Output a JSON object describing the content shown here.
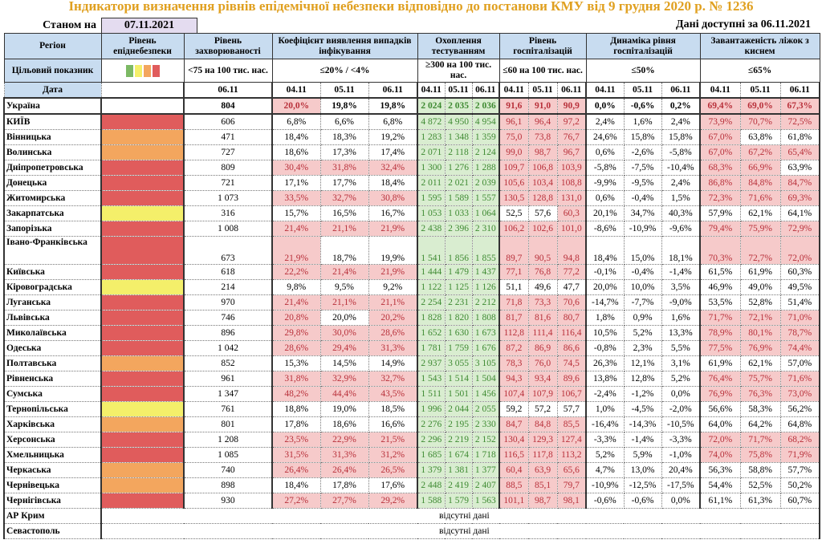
{
  "title": "Індикатори визначення рівнів епідемічної небезпеки відповідно до постанови КМУ від 9 грудня 2020 р. № 1236",
  "as_of_label": "Станом на",
  "as_of_date": "07.11.2021",
  "available_label": "Дані доступні за 06.11.2021",
  "headers": {
    "region": "Регіон",
    "level": "Рівень епіднебезпеки",
    "incidence": "Рівень захворюваності",
    "coef": "Коефіцієнт виявлення випадків інфікування",
    "testing": "Охоплення тестуванням",
    "hosp": "Рівень госпіталізацій",
    "dyn": "Динаміка рівня госпіталізацій",
    "oxy": "Завантаженість ліжок з киснем"
  },
  "target": {
    "label": "Цільовий показник",
    "incidence": "<75 на 100 тис. нас.",
    "coef": "≤20% / <4%",
    "testing": "≥300 на 100 тис. нас.",
    "hosp": "≤60 на 100 тис. нас.",
    "dyn": "≤50%",
    "oxy": "≤65%"
  },
  "date_row": {
    "label": "Дата",
    "incidence": "06.11",
    "dates": [
      "04.11",
      "05.11",
      "06.11"
    ]
  },
  "level_colors": {
    "green": "#7cb964",
    "yellow": "#f4ef6a",
    "orange": "#f3a65e",
    "red": "#e05c5c"
  },
  "rows": [
    {
      "r": "Україна",
      "lvl": "",
      "inc": "804",
      "coef": [
        "20,0%",
        "19,8%",
        "19,8%"
      ],
      "coef_hl": [
        1,
        0,
        0
      ],
      "test": [
        "2 024",
        "2 035",
        "2 036"
      ],
      "hosp": [
        "91,6",
        "91,0",
        "90,9"
      ],
      "dyn": [
        "0,0%",
        "-0,6%",
        "0,2%"
      ],
      "oxy": [
        "69,4%",
        "69,0%",
        "67,3%"
      ]
    },
    {
      "r": "КИЇВ",
      "lvl": "red",
      "inc": "606",
      "coef": [
        "6,8%",
        "6,6%",
        "6,8%"
      ],
      "test": [
        "4 872",
        "4 950",
        "4 954"
      ],
      "hosp": [
        "96,1",
        "96,4",
        "97,2"
      ],
      "dyn": [
        "2,4%",
        "1,6%",
        "2,4%"
      ],
      "oxy": [
        "73,9%",
        "70,7%",
        "72,5%"
      ]
    },
    {
      "r": "Вінницька",
      "lvl": "orange",
      "inc": "471",
      "coef": [
        "18,4%",
        "18,3%",
        "19,2%"
      ],
      "test": [
        "1 283",
        "1 348",
        "1 359"
      ],
      "hosp": [
        "75,0",
        "73,8",
        "76,7"
      ],
      "dyn": [
        "24,6%",
        "15,8%",
        "15,8%"
      ],
      "oxy": [
        "67,0%",
        "63,8%",
        "61,8%"
      ]
    },
    {
      "r": "Волинська",
      "lvl": "orange",
      "inc": "727",
      "coef": [
        "18,6%",
        "17,3%",
        "17,4%"
      ],
      "test": [
        "2 071",
        "2 118",
        "2 124"
      ],
      "hosp": [
        "99,0",
        "98,7",
        "96,7"
      ],
      "dyn": [
        "0,6%",
        "-2,6%",
        "-5,8%"
      ],
      "oxy": [
        "67,0%",
        "67,2%",
        "65,4%"
      ]
    },
    {
      "r": "Дніпропетровська",
      "lvl": "red",
      "inc": "809",
      "coef": [
        "30,4%",
        "31,8%",
        "32,4%"
      ],
      "test": [
        "1 300",
        "1 276",
        "1 288"
      ],
      "hosp": [
        "109,7",
        "106,8",
        "103,9"
      ],
      "dyn": [
        "-5,8%",
        "-7,5%",
        "-10,4%"
      ],
      "oxy": [
        "68,3%",
        "66,9%",
        "63,9%"
      ]
    },
    {
      "r": "Донецька",
      "lvl": "red",
      "inc": "721",
      "coef": [
        "17,1%",
        "17,7%",
        "18,4%"
      ],
      "test": [
        "2 011",
        "2 021",
        "2 039"
      ],
      "hosp": [
        "105,6",
        "103,4",
        "108,8"
      ],
      "dyn": [
        "-9,9%",
        "-9,5%",
        "2,4%"
      ],
      "oxy": [
        "86,8%",
        "84,8%",
        "84,7%"
      ]
    },
    {
      "r": "Житомирська",
      "lvl": "red",
      "inc": "1 073",
      "coef": [
        "33,5%",
        "32,7%",
        "30,8%"
      ],
      "test": [
        "1 595",
        "1 589",
        "1 557"
      ],
      "hosp": [
        "130,5",
        "128,8",
        "131,0"
      ],
      "dyn": [
        "0,6%",
        "-0,4%",
        "1,5%"
      ],
      "oxy": [
        "72,3%",
        "71,6%",
        "69,3%"
      ]
    },
    {
      "r": "Закарпатська",
      "lvl": "yellow",
      "inc": "316",
      "coef": [
        "15,7%",
        "16,5%",
        "16,7%"
      ],
      "test": [
        "1 053",
        "1 033",
        "1 064"
      ],
      "hosp": [
        "52,5",
        "57,6",
        "60,3"
      ],
      "dyn": [
        "20,1%",
        "34,7%",
        "40,3%"
      ],
      "oxy": [
        "57,9%",
        "62,1%",
        "64,1%"
      ]
    },
    {
      "r": "Запорізька",
      "lvl": "red",
      "inc": "1 008",
      "coef": [
        "21,4%",
        "21,1%",
        "21,9%"
      ],
      "test": [
        "2 438",
        "2 396",
        "2 310"
      ],
      "hosp": [
        "106,2",
        "102,6",
        "101,0"
      ],
      "dyn": [
        "-8,6%",
        "-10,9%",
        "-9,6%"
      ],
      "oxy": [
        "79,4%",
        "75,9%",
        "72,9%"
      ]
    },
    {
      "r": "Івано-Франківська",
      "lvl": "red",
      "inc": "673",
      "coef": [
        "21,9%",
        "18,7%",
        "19,9%"
      ],
      "test": [
        "1 541",
        "1 856",
        "1 855"
      ],
      "hosp": [
        "89,7",
        "90,5",
        "94,8"
      ],
      "dyn": [
        "18,4%",
        "15,0%",
        "18,1%"
      ],
      "oxy": [
        "70,3%",
        "72,7%",
        "72,0%"
      ]
    },
    {
      "r": "Київська",
      "lvl": "red",
      "inc": "618",
      "coef": [
        "22,2%",
        "21,4%",
        "21,9%"
      ],
      "test": [
        "1 444",
        "1 479",
        "1 437"
      ],
      "hosp": [
        "77,1",
        "76,8",
        "77,2"
      ],
      "dyn": [
        "-0,1%",
        "-0,4%",
        "-1,4%"
      ],
      "oxy": [
        "61,5%",
        "61,9%",
        "60,3%"
      ]
    },
    {
      "r": "Кіровоградська",
      "lvl": "yellow",
      "inc": "214",
      "coef": [
        "9,8%",
        "9,5%",
        "9,2%"
      ],
      "test": [
        "1 122",
        "1 125",
        "1 126"
      ],
      "hosp": [
        "51,1",
        "49,6",
        "47,7"
      ],
      "dyn": [
        "20,0%",
        "10,0%",
        "3,5%"
      ],
      "oxy": [
        "46,9%",
        "49,0%",
        "49,5%"
      ]
    },
    {
      "r": "Луганська",
      "lvl": "red",
      "inc": "970",
      "coef": [
        "21,4%",
        "21,1%",
        "21,1%"
      ],
      "test": [
        "2 254",
        "2 231",
        "2 212"
      ],
      "hosp": [
        "71,8",
        "73,3",
        "70,6"
      ],
      "dyn": [
        "-14,7%",
        "-7,7%",
        "-9,0%"
      ],
      "oxy": [
        "53,5%",
        "52,8%",
        "51,4%"
      ]
    },
    {
      "r": "Львівська",
      "lvl": "red",
      "inc": "746",
      "coef": [
        "20,8%",
        "20,0%",
        "20,2%"
      ],
      "test": [
        "1 828",
        "1 820",
        "1 808"
      ],
      "hosp": [
        "81,7",
        "81,6",
        "80,7"
      ],
      "dyn": [
        "1,8%",
        "0,9%",
        "1,6%"
      ],
      "oxy": [
        "71,7%",
        "72,1%",
        "71,0%"
      ]
    },
    {
      "r": "Миколаївська",
      "lvl": "red",
      "inc": "896",
      "coef": [
        "29,8%",
        "30,0%",
        "28,6%"
      ],
      "test": [
        "1 652",
        "1 630",
        "1 673"
      ],
      "hosp": [
        "112,8",
        "111,4",
        "116,4"
      ],
      "dyn": [
        "10,5%",
        "5,2%",
        "13,3%"
      ],
      "oxy": [
        "78,9%",
        "80,1%",
        "78,7%"
      ]
    },
    {
      "r": "Одеська",
      "lvl": "red",
      "inc": "1 042",
      "coef": [
        "28,6%",
        "29,4%",
        "31,3%"
      ],
      "test": [
        "1 781",
        "1 759",
        "1 676"
      ],
      "hosp": [
        "87,2",
        "86,9",
        "86,6"
      ],
      "dyn": [
        "-0,8%",
        "2,3%",
        "5,5%"
      ],
      "oxy": [
        "77,5%",
        "76,9%",
        "74,4%"
      ]
    },
    {
      "r": "Полтавська",
      "lvl": "orange",
      "inc": "852",
      "coef": [
        "15,3%",
        "14,5%",
        "14,9%"
      ],
      "test": [
        "2 937",
        "3 055",
        "3 105"
      ],
      "hosp": [
        "78,3",
        "76,0",
        "74,5"
      ],
      "dyn": [
        "26,3%",
        "12,1%",
        "3,1%"
      ],
      "oxy": [
        "61,9%",
        "62,1%",
        "57,0%"
      ]
    },
    {
      "r": "Рівненська",
      "lvl": "red",
      "inc": "961",
      "coef": [
        "31,8%",
        "32,9%",
        "32,7%"
      ],
      "test": [
        "1 543",
        "1 514",
        "1 504"
      ],
      "hosp": [
        "94,3",
        "93,4",
        "89,6"
      ],
      "dyn": [
        "13,8%",
        "12,8%",
        "5,2%"
      ],
      "oxy": [
        "76,4%",
        "75,7%",
        "71,6%"
      ]
    },
    {
      "r": "Сумська",
      "lvl": "red",
      "inc": "1 347",
      "coef": [
        "48,2%",
        "44,4%",
        "43,5%"
      ],
      "test": [
        "1 511",
        "1 501",
        "1 456"
      ],
      "hosp": [
        "107,4",
        "107,9",
        "106,7"
      ],
      "dyn": [
        "-2,4%",
        "-1,2%",
        "0,0%"
      ],
      "oxy": [
        "76,9%",
        "76,3%",
        "73,0%"
      ]
    },
    {
      "r": "Тернопільська",
      "lvl": "yellow",
      "inc": "761",
      "coef": [
        "18,8%",
        "19,0%",
        "18,5%"
      ],
      "test": [
        "1 996",
        "2 044",
        "2 055"
      ],
      "hosp": [
        "59,2",
        "57,2",
        "57,7"
      ],
      "dyn": [
        "1,0%",
        "-4,5%",
        "-2,0%"
      ],
      "oxy": [
        "56,6%",
        "58,3%",
        "56,2%"
      ]
    },
    {
      "r": "Харківська",
      "lvl": "orange",
      "inc": "801",
      "coef": [
        "17,8%",
        "18,6%",
        "16,6%"
      ],
      "test": [
        "2 276",
        "2 195",
        "2 330"
      ],
      "hosp": [
        "84,7",
        "84,8",
        "85,5"
      ],
      "dyn": [
        "-16,4%",
        "-14,3%",
        "-10,5%"
      ],
      "oxy": [
        "64,0%",
        "64,2%",
        "64,8%"
      ]
    },
    {
      "r": "Херсонська",
      "lvl": "red",
      "inc": "1 208",
      "coef": [
        "23,5%",
        "22,9%",
        "21,5%"
      ],
      "test": [
        "2 296",
        "2 219",
        "2 152"
      ],
      "hosp": [
        "130,4",
        "129,3",
        "127,4"
      ],
      "dyn": [
        "-3,3%",
        "-1,4%",
        "-3,3%"
      ],
      "oxy": [
        "72,0%",
        "71,7%",
        "68,2%"
      ]
    },
    {
      "r": "Хмельницька",
      "lvl": "red",
      "inc": "1 085",
      "coef": [
        "31,5%",
        "31,3%",
        "31,2%"
      ],
      "test": [
        "1 685",
        "1 674",
        "1 718"
      ],
      "hosp": [
        "116,5",
        "117,8",
        "113,2"
      ],
      "dyn": [
        "5,2%",
        "5,9%",
        "-1,0%"
      ],
      "oxy": [
        "74,0%",
        "75,8%",
        "71,9%"
      ]
    },
    {
      "r": "Черкаська",
      "lvl": "orange",
      "inc": "740",
      "coef": [
        "26,4%",
        "26,4%",
        "26,5%"
      ],
      "test": [
        "1 379",
        "1 381",
        "1 377"
      ],
      "hosp": [
        "60,4",
        "63,9",
        "65,6"
      ],
      "dyn": [
        "4,7%",
        "13,0%",
        "20,4%"
      ],
      "oxy": [
        "56,3%",
        "58,8%",
        "57,7%"
      ]
    },
    {
      "r": "Чернівецька",
      "lvl": "orange",
      "inc": "898",
      "coef": [
        "18,4%",
        "17,8%",
        "17,6%"
      ],
      "test": [
        "2 448",
        "2 419",
        "2 407"
      ],
      "hosp": [
        "88,5",
        "85,1",
        "79,7"
      ],
      "dyn": [
        "-10,9%",
        "-12,5%",
        "-17,5%"
      ],
      "oxy": [
        "54,4%",
        "52,5%",
        "50,2%"
      ]
    },
    {
      "r": "Чернігівська",
      "lvl": "red",
      "inc": "930",
      "coef": [
        "27,2%",
        "27,7%",
        "29,2%"
      ],
      "test": [
        "1 588",
        "1 579",
        "1 563"
      ],
      "hosp": [
        "101,1",
        "98,7",
        "98,1"
      ],
      "dyn": [
        "-0,6%",
        "-0,6%",
        "0,0%"
      ],
      "oxy": [
        "61,1%",
        "61,3%",
        "60,7%"
      ]
    }
  ],
  "missing": [
    {
      "r": "АР Крим",
      "text": "відсутні дані"
    },
    {
      "r": "Севастополь",
      "text": "відсутні дані"
    }
  ]
}
